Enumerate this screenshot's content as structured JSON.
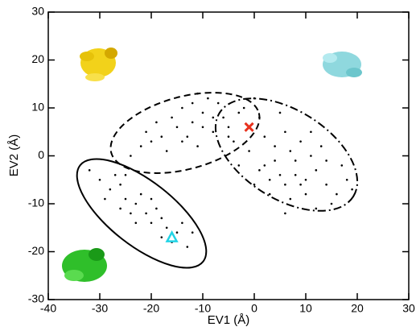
{
  "chart_data": {
    "type": "scatter",
    "xlabel": "EV1 (Å)",
    "ylabel": "EV2 (Å)",
    "xlim": [
      -40,
      30
    ],
    "ylim": [
      -30,
      30
    ],
    "xticks": [
      -40,
      -30,
      -20,
      -10,
      0,
      10,
      20,
      30
    ],
    "yticks": [
      -30,
      -20,
      -10,
      0,
      10,
      20,
      30
    ],
    "series": [
      {
        "color": "#000000",
        "marker": "dot",
        "x": [
          2,
          5,
          8,
          10,
          12,
          4,
          6,
          0,
          14,
          16,
          3,
          7,
          9,
          1,
          -2,
          -4,
          11,
          13,
          18,
          15,
          6,
          4,
          8,
          2,
          -1,
          10,
          17,
          5,
          -3,
          12,
          7,
          9,
          3,
          1,
          19,
          -5,
          0,
          14,
          6,
          11,
          -12,
          -15,
          -10,
          -8,
          -18,
          -20,
          -14,
          -6,
          -11,
          -16,
          -22,
          -9,
          -13,
          -7,
          -19,
          -24,
          -5,
          -17,
          -12,
          -10,
          -3,
          -14,
          -8,
          -21,
          -11,
          -30,
          -28,
          -26,
          -25,
          -23,
          -21,
          -20,
          -18,
          -17,
          -15,
          -24,
          -27,
          -22,
          -19,
          -16,
          -13,
          -29,
          -26,
          -20,
          -14,
          -32,
          -23,
          -18,
          -12,
          -25
        ],
        "y": [
          -2,
          -4,
          -1,
          -5,
          -3,
          2,
          5,
          -6,
          -6,
          -8,
          -8,
          -9,
          3,
          8,
          10,
          3,
          0,
          2,
          -5,
          -10,
          -6,
          -1,
          -4,
          4,
          1,
          -8,
          -2,
          9,
          -2,
          -11,
          1,
          -6,
          -5,
          -3,
          -7,
          6,
          12,
          -1,
          -12,
          5,
          7,
          6,
          9,
          5,
          4,
          3,
          10,
          8,
          2,
          8,
          2,
          12,
          4,
          11,
          7,
          0,
          4,
          1,
          11,
          6,
          9,
          3,
          8,
          5,
          13,
          -5,
          -7,
          -6,
          -9,
          -10,
          -12,
          -14,
          -13,
          -15,
          -16,
          -12,
          -4,
          -8,
          -11,
          -18,
          -19,
          -9,
          -11,
          -9,
          -14,
          -3,
          -14,
          -17,
          -16,
          -4
        ]
      },
      {
        "color": "#e8321e",
        "marker": "x",
        "x": [
          -1
        ],
        "y": [
          6
        ]
      },
      {
        "color": "#22d4e6",
        "marker": "triangle",
        "x": [
          -16
        ],
        "y": [
          -17
        ]
      }
    ]
  }
}
